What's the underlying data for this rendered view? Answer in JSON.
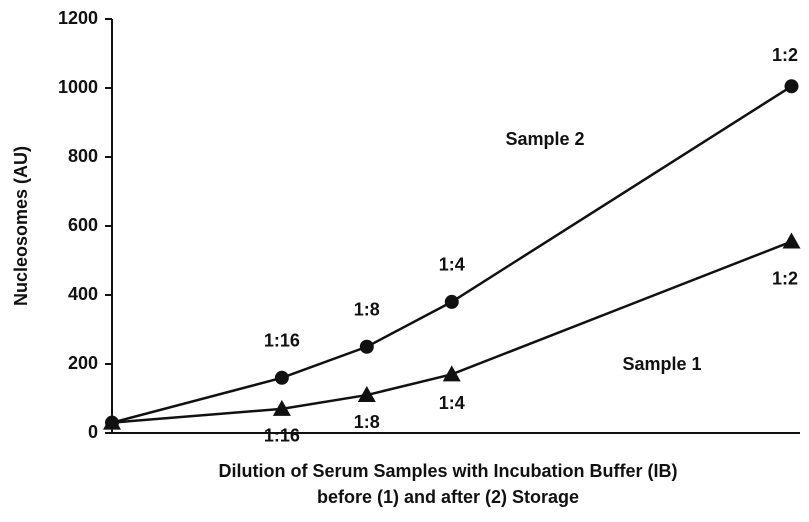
{
  "chart_data": {
    "type": "line",
    "ylabel": "Nucleosomes (AU)",
    "xlabel": [
      "Dilution of Serum Samples with Incubation Buffer (IB)",
      "before (1) and after (2) Storage"
    ],
    "x": [
      0,
      1,
      1.5,
      2,
      4
    ],
    "xlim": [
      0,
      4.05
    ],
    "ylim": [
      0,
      1200
    ],
    "yticks": [
      0,
      200,
      400,
      600,
      800,
      1000,
      1200
    ],
    "series": [
      {
        "name": "Sample 2",
        "color": "#111111",
        "marker": "circle",
        "values": [
          30,
          160,
          250,
          380,
          1005
        ],
        "point_labels": [
          null,
          "1:16",
          "1:8",
          "1:4",
          "1:2"
        ]
      },
      {
        "name": "Sample 1",
        "color": "#111111",
        "marker": "triangle",
        "values": [
          30,
          70,
          110,
          170,
          555
        ],
        "point_labels": [
          null,
          "1:16",
          "1:8",
          "1:4",
          "1:2"
        ]
      }
    ]
  }
}
